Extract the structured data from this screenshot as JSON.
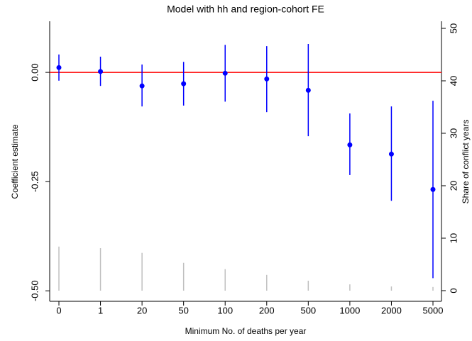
{
  "chart_data": {
    "type": "errorbar",
    "title": "Model with hh and region-cohort FE",
    "xlabel": "Minimum No. of deaths per year",
    "ylabel": "Coefficient estimate",
    "y2label": "Share of conflict years",
    "categories": [
      "0",
      "1",
      "20",
      "50",
      "100",
      "200",
      "500",
      "1000",
      "2000",
      "5000"
    ],
    "series": [
      {
        "color": "#0000ff",
        "values": [
          0.011,
          0.002,
          -0.031,
          -0.026,
          -0.002,
          -0.015,
          -0.041,
          -0.166,
          -0.187,
          -0.268
        ],
        "lower": [
          -0.019,
          -0.031,
          -0.078,
          -0.076,
          -0.067,
          -0.091,
          -0.146,
          -0.235,
          -0.294,
          -0.471
        ],
        "upper": [
          0.041,
          0.036,
          0.018,
          0.024,
          0.063,
          0.06,
          0.065,
          -0.094,
          -0.078,
          -0.065
        ]
      },
      {
        "axis": "y2",
        "kind": "spike",
        "color": "#c0c0c0",
        "values": [
          8.4,
          8.1,
          7.2,
          5.3,
          4.1,
          3.0,
          1.9,
          1.2,
          0.8,
          0.7
        ]
      }
    ],
    "hline": {
      "value": 0,
      "color": "#ff0000"
    },
    "ylim": [
      -0.524,
      0.117
    ],
    "yticks": [
      {
        "value": 0,
        "label": "0.00"
      },
      {
        "value": -0.25,
        "label": "-0.25"
      },
      {
        "value": -0.5,
        "label": "-0.50"
      }
    ],
    "y2lim": [
      -2.03,
      51.35
    ],
    "y2ticks": [
      0,
      10,
      20,
      30,
      40,
      50
    ],
    "grid": false
  }
}
